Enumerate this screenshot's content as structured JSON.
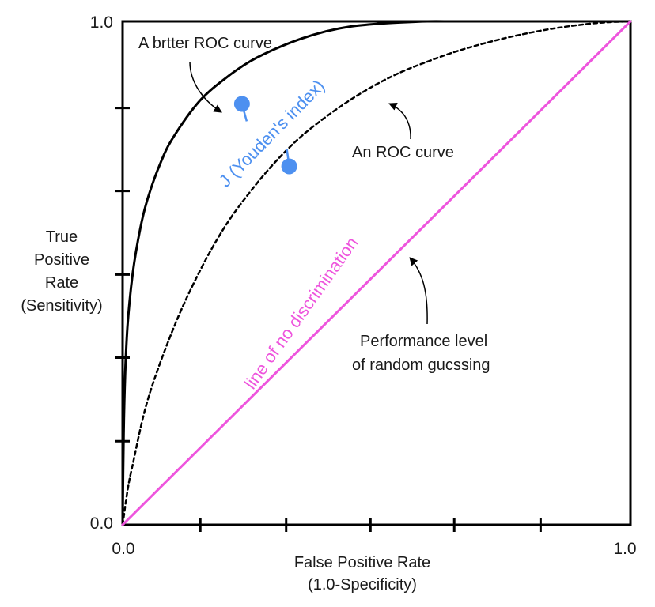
{
  "chart_data": {
    "type": "line",
    "xlabel": [
      "False Positive Rate",
      "(1.0-Specificity)"
    ],
    "ylabel": [
      "True",
      "Positive",
      "Rate",
      "(Sensitivity)"
    ],
    "xlim": [
      0,
      1
    ],
    "ylim": [
      0,
      1
    ],
    "x_tick_labels": [
      "0.0",
      "1.0"
    ],
    "y_tick_labels": [
      "0.0",
      "1.0"
    ],
    "x_tick_marks": [
      0.153,
      0.322,
      0.488,
      0.653,
      0.823
    ],
    "y_tick_marks": [
      0.166,
      0.332,
      0.497,
      0.663,
      0.828
    ],
    "grid": false,
    "series": [
      {
        "key": "better",
        "style": "solid",
        "color": "#000000",
        "x": [
          0.0,
          0.002,
          0.005,
          0.01,
          0.02,
          0.035,
          0.05,
          0.075,
          0.1,
          0.15,
          0.2,
          0.25,
          0.3,
          0.35,
          0.4,
          0.45,
          0.5,
          0.55,
          0.6,
          0.65,
          0.7
        ],
        "y": [
          0.0,
          0.18,
          0.3,
          0.4,
          0.5,
          0.59,
          0.65,
          0.72,
          0.77,
          0.84,
          0.885,
          0.92,
          0.945,
          0.965,
          0.98,
          0.99,
          0.995,
          0.998,
          1.0,
          1.0,
          1.0
        ]
      },
      {
        "key": "roc",
        "style": "dashed",
        "color": "#000000",
        "x": [
          0.0,
          0.01,
          0.02,
          0.05,
          0.1,
          0.15,
          0.2,
          0.25,
          0.3,
          0.35,
          0.4,
          0.45,
          0.5,
          0.55,
          0.6,
          0.65,
          0.7,
          0.75,
          0.8,
          0.85,
          0.9,
          0.95,
          1.0
        ],
        "y": [
          0.0,
          0.07,
          0.12,
          0.25,
          0.39,
          0.5,
          0.59,
          0.66,
          0.72,
          0.77,
          0.81,
          0.845,
          0.875,
          0.9,
          0.92,
          0.938,
          0.953,
          0.966,
          0.977,
          0.986,
          0.993,
          0.998,
          1.0
        ]
      },
      {
        "key": "diagonal",
        "style": "solid",
        "color": "#ee55dd",
        "x": [
          0,
          1
        ],
        "y": [
          0,
          1
        ]
      }
    ],
    "youden_points": [
      {
        "x": 0.235,
        "y": 0.836
      },
      {
        "x": 0.328,
        "y": 0.712
      }
    ],
    "annotations": {
      "better_curve": "A brtter ROC curve",
      "roc_curve": "An ROC curve",
      "youden": "J (Youden's index)",
      "diagonal": "line of no discrimination",
      "random_line1": "Performance level",
      "random_line2": "of random gucssing"
    },
    "colors": {
      "axis": "#000000",
      "diagonal": "#ee55dd",
      "youden": "#4d90f0"
    }
  }
}
